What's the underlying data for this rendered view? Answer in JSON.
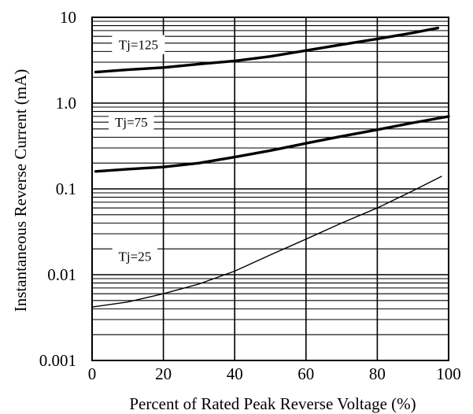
{
  "chart_data": {
    "type": "line",
    "xlabel": "Percent of Rated Peak Reverse Voltage (%)",
    "ylabel": "Instantaneous Reverse Current (mA)",
    "xlim": [
      0,
      100
    ],
    "ylim": [
      0.001,
      10
    ],
    "y_scale": "log",
    "grid": true,
    "x_ticks": [
      0,
      20,
      40,
      60,
      80,
      100
    ],
    "x_tick_labels": [
      "0",
      "20",
      "40",
      "60",
      "80",
      "100"
    ],
    "y_ticks": [
      0.001,
      0.01,
      0.1,
      1,
      10
    ],
    "y_tick_labels": [
      "0.001",
      "0.01",
      "0.1",
      "1.0",
      "10"
    ],
    "series": [
      {
        "name": "Tj=125",
        "x": [
          1,
          10,
          20,
          30,
          40,
          50,
          60,
          70,
          80,
          90,
          97
        ],
        "y": [
          2.3,
          2.45,
          2.6,
          2.85,
          3.1,
          3.5,
          4.1,
          4.8,
          5.6,
          6.6,
          7.5
        ]
      },
      {
        "name": "Tj=75",
        "x": [
          1,
          10,
          20,
          30,
          40,
          50,
          60,
          70,
          80,
          90,
          100
        ],
        "y": [
          0.16,
          0.17,
          0.18,
          0.2,
          0.235,
          0.28,
          0.34,
          0.41,
          0.49,
          0.59,
          0.7
        ]
      },
      {
        "name": "Tj=25",
        "x": [
          0,
          10,
          20,
          30,
          40,
          50,
          60,
          70,
          80,
          90,
          98
        ],
        "y": [
          0.0042,
          0.0048,
          0.006,
          0.0078,
          0.011,
          0.017,
          0.026,
          0.04,
          0.06,
          0.095,
          0.14
        ]
      }
    ]
  },
  "style": {
    "line_color": "#000000",
    "background": "#ffffff"
  }
}
